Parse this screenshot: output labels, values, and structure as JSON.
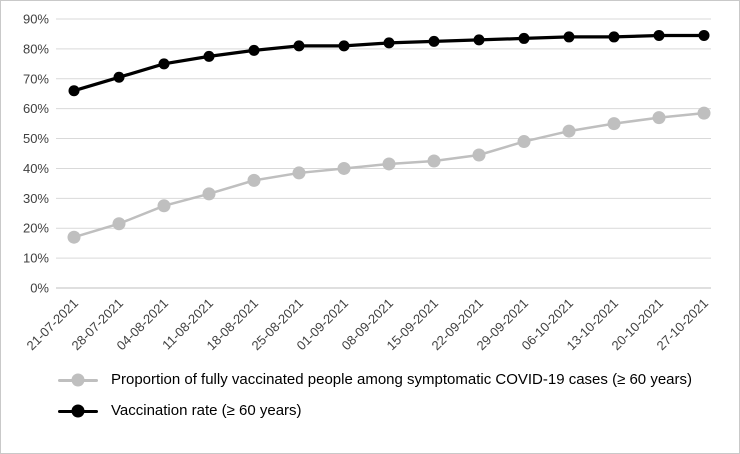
{
  "chart_data": {
    "type": "line",
    "categories": [
      "21-07-2021",
      "28-07-2021",
      "04-08-2021",
      "11-08-2021",
      "18-08-2021",
      "25-08-2021",
      "01-09-2021",
      "08-09-2021",
      "15-09-2021",
      "22-09-2021",
      "29-09-2021",
      "06-10-2021",
      "13-10-2021",
      "20-10-2021",
      "27-10-2021"
    ],
    "series": [
      {
        "name": "Proportion of fully vaccinated people among symptomatic COVID-19 cases (≥ 60 years)",
        "color": "#bfbfbf",
        "values": [
          17,
          21.5,
          27.5,
          31.5,
          36,
          38.5,
          40,
          41.5,
          42.5,
          44.5,
          49,
          52.5,
          55,
          57,
          58.5
        ]
      },
      {
        "name": "Vaccination rate (≥ 60 years)",
        "color": "#000000",
        "values": [
          66,
          70.5,
          75,
          77.5,
          79.5,
          81,
          81,
          82,
          82.5,
          83,
          83.5,
          84,
          84,
          84.5,
          84.5
        ]
      }
    ],
    "title": "",
    "xlabel": "",
    "ylabel": "",
    "ylim": [
      0,
      90
    ],
    "ytick_step": 10,
    "ytick_labels": [
      "0%",
      "10%",
      "20%",
      "30%",
      "40%",
      "50%",
      "60%",
      "70%",
      "80%",
      "90%"
    ],
    "grid": true,
    "grid_color": "#d9d9d9",
    "axis_color": "#bfbfbf",
    "legend_position": "bottom-left"
  }
}
